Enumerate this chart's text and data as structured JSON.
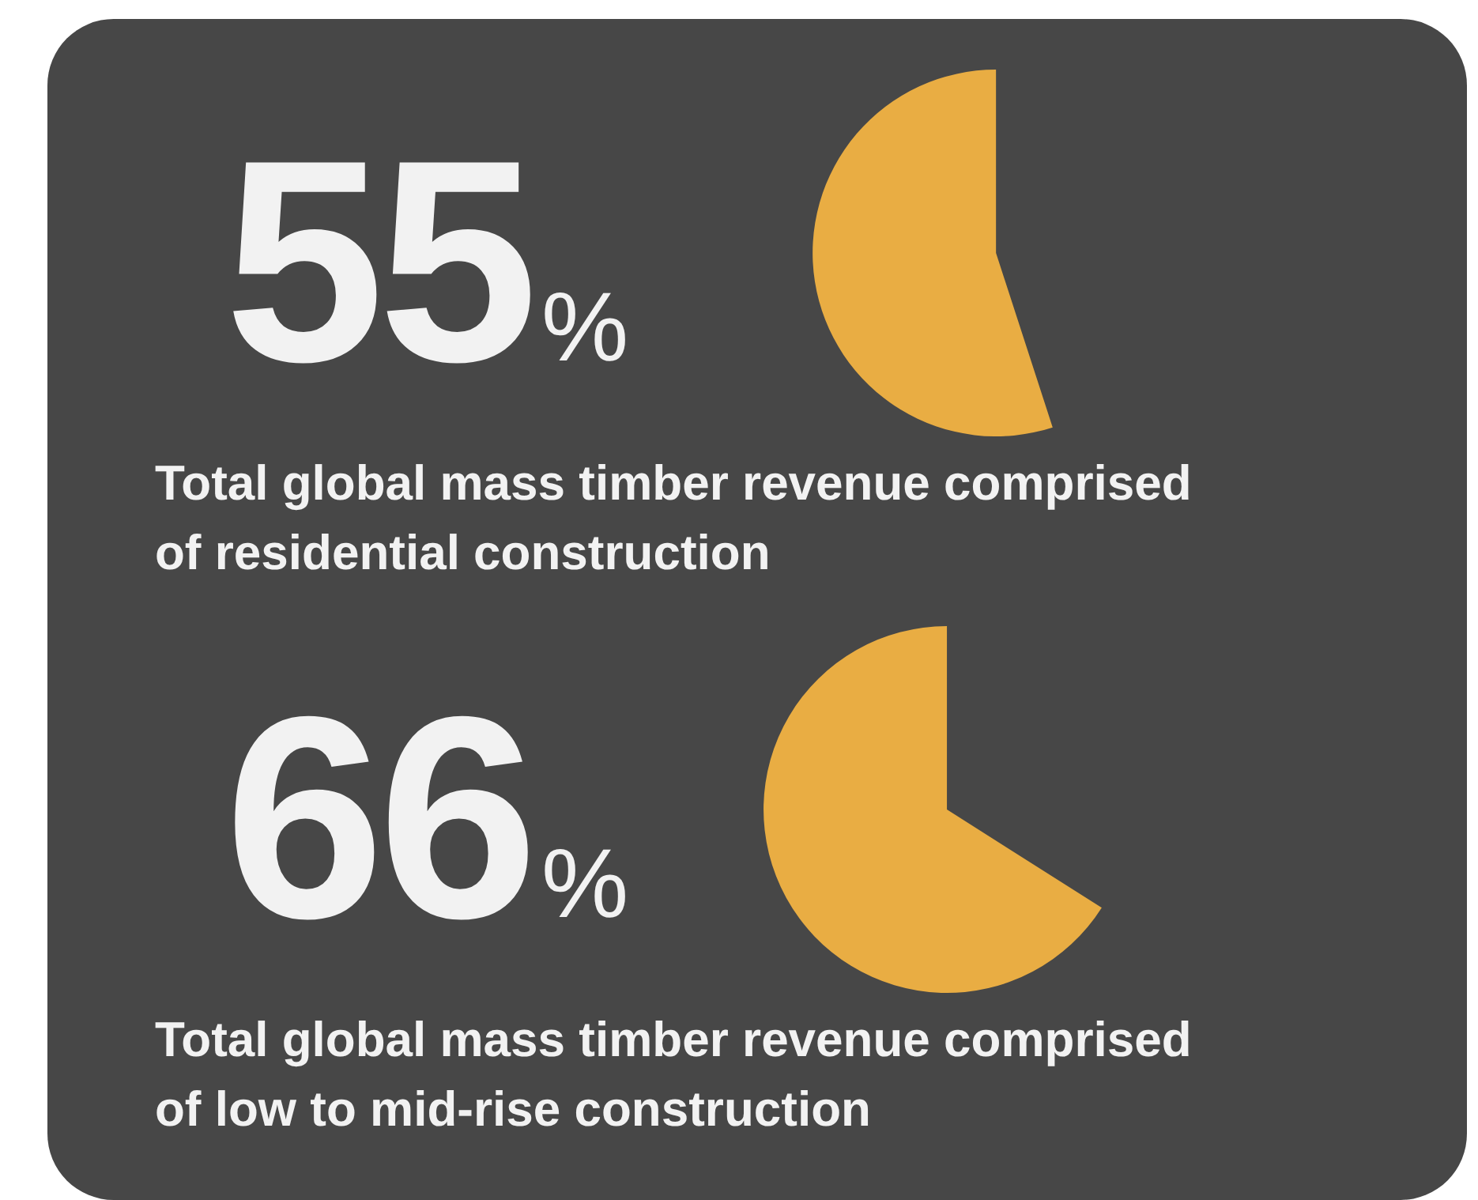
{
  "chart_data": [
    {
      "type": "pie",
      "title": "Total global mass timber revenue comprised of residential construction",
      "categories": [
        null
      ],
      "values": [
        55
      ],
      "colors": [
        "#e9ad43"
      ],
      "value_labels": [
        "55%"
      ]
    },
    {
      "type": "pie",
      "title": "Total global mass timber revenue comprised of low to mid-rise construction",
      "categories": [
        null
      ],
      "values": [
        66
      ],
      "colors": [
        "#e9ad43"
      ],
      "value_labels": [
        "66%"
      ]
    }
  ]
}
